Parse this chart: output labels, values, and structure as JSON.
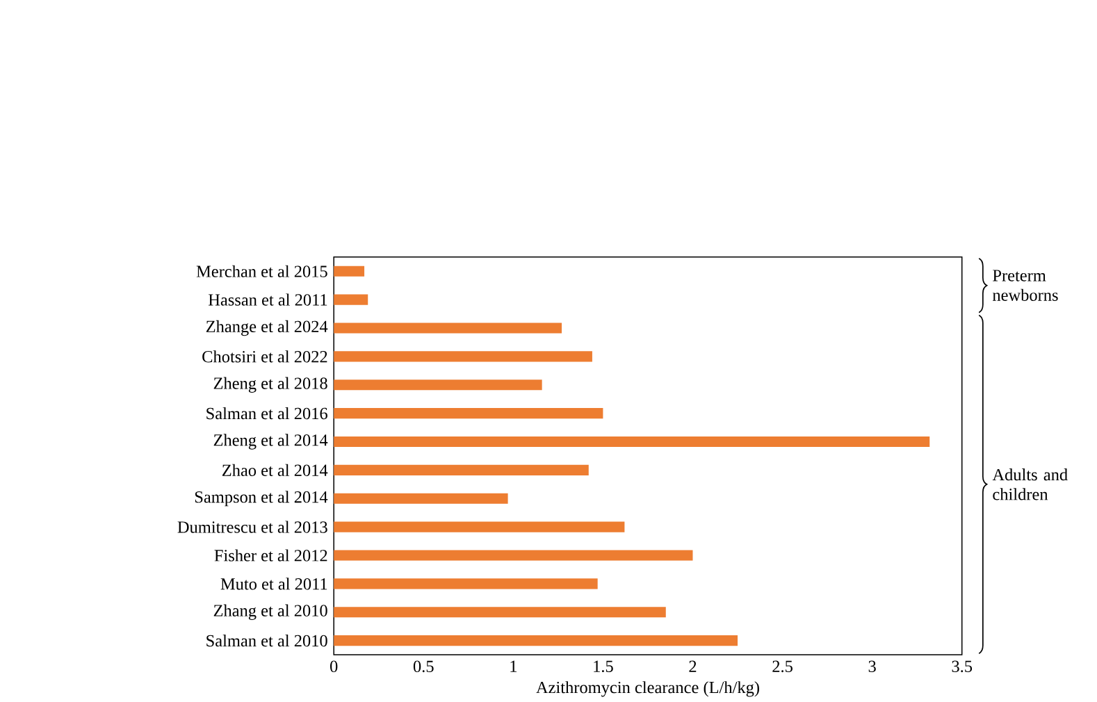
{
  "chart_data": {
    "type": "bar",
    "orientation": "horizontal",
    "xlabel": "Azithromycin clearance (L/h/kg)",
    "categories": [
      "Merchan et al 2015",
      "Hassan et al 2011",
      "Zhange et al 2024",
      "Chotsiri et al  2022",
      "Zheng et al 2018",
      "Salman et al 2016",
      "Zheng et al 2014",
      "Zhao et al 2014",
      "Sampson et al 2014",
      "Dumitrescu et al 2013",
      "Fisher et al 2012",
      "Muto et al 2011",
      "Zhang et al 2010",
      "Salman et al 2010"
    ],
    "values": [
      0.17,
      0.19,
      1.27,
      1.44,
      1.16,
      1.5,
      3.32,
      1.42,
      0.97,
      1.62,
      2.0,
      1.47,
      1.85,
      2.25
    ],
    "color": "#ed7d31",
    "xlim": [
      0,
      3.5
    ],
    "xticks": [
      0,
      0.5,
      1,
      1.5,
      2,
      2.5,
      3,
      3.5
    ],
    "annotations": [
      "Preterm newborns",
      "Adults and children"
    ]
  }
}
